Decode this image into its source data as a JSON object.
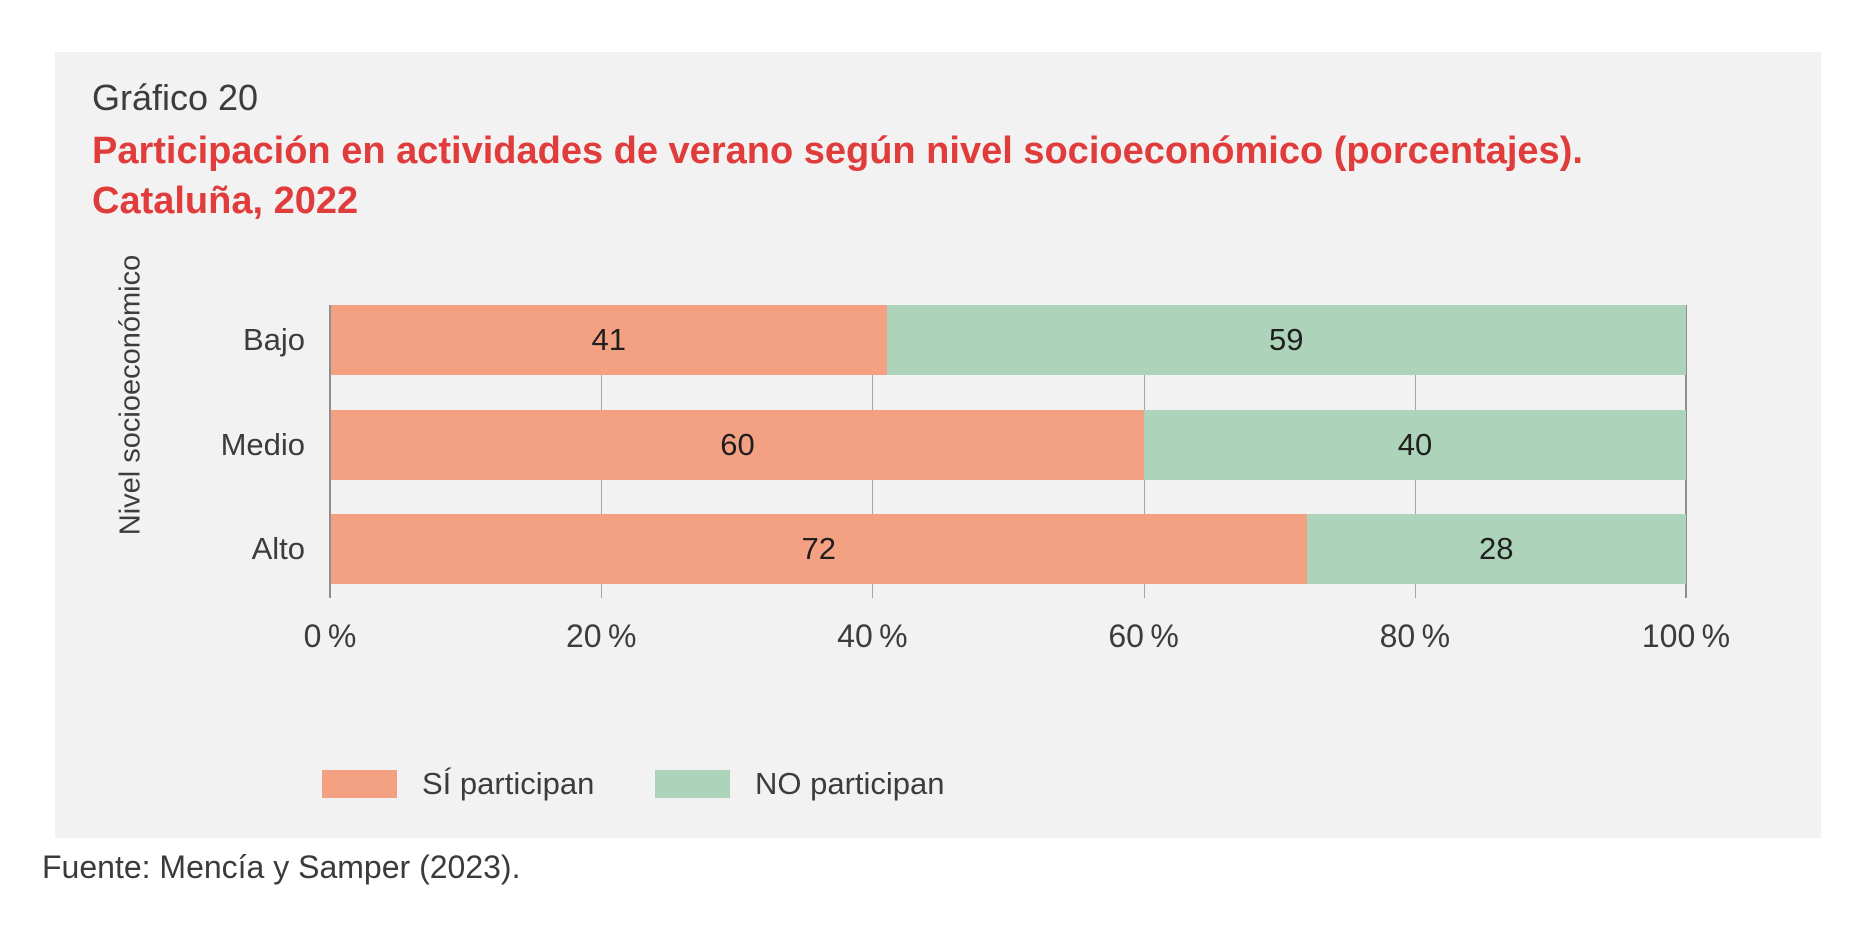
{
  "panel": {
    "background": "#f2f2f2"
  },
  "header": {
    "kicker": "Gráfico 20",
    "title_lines": [
      "Participación en actividades de verano según nivel socioeconómico (porcentajes).",
      "Cataluña, 2022"
    ],
    "title_color": "#e13c3c"
  },
  "chart_data": {
    "type": "bar",
    "orientation": "horizontal",
    "stacked": true,
    "title": "Participación en actividades de verano según nivel socioeconómico (porcentajes). Cataluña, 2022",
    "ylabel": "Nivel socioeconómico",
    "xlabel": "",
    "categories": [
      "Bajo",
      "Medio",
      "Alto"
    ],
    "series": [
      {
        "name": "SÍ participan",
        "color": "#f4a183",
        "values": [
          41,
          60,
          72
        ]
      },
      {
        "name": "NO participan",
        "color": "#add3ba",
        "values": [
          59,
          40,
          28
        ]
      }
    ],
    "xlim": [
      0,
      100
    ],
    "x_ticks": [
      {
        "value": 0,
        "label": "0 %"
      },
      {
        "value": 20,
        "label": "20 %"
      },
      {
        "value": 40,
        "label": "40 %"
      },
      {
        "value": 60,
        "label": "60 %"
      },
      {
        "value": 80,
        "label": "80 %"
      },
      {
        "value": 100,
        "label": "100 %"
      }
    ],
    "grid": true,
    "gridline_color": "#a6a6a6",
    "value_labels": true,
    "legend_position": "bottom"
  },
  "footer": {
    "source": "Fuente: Mencía y Samper (2023)."
  }
}
